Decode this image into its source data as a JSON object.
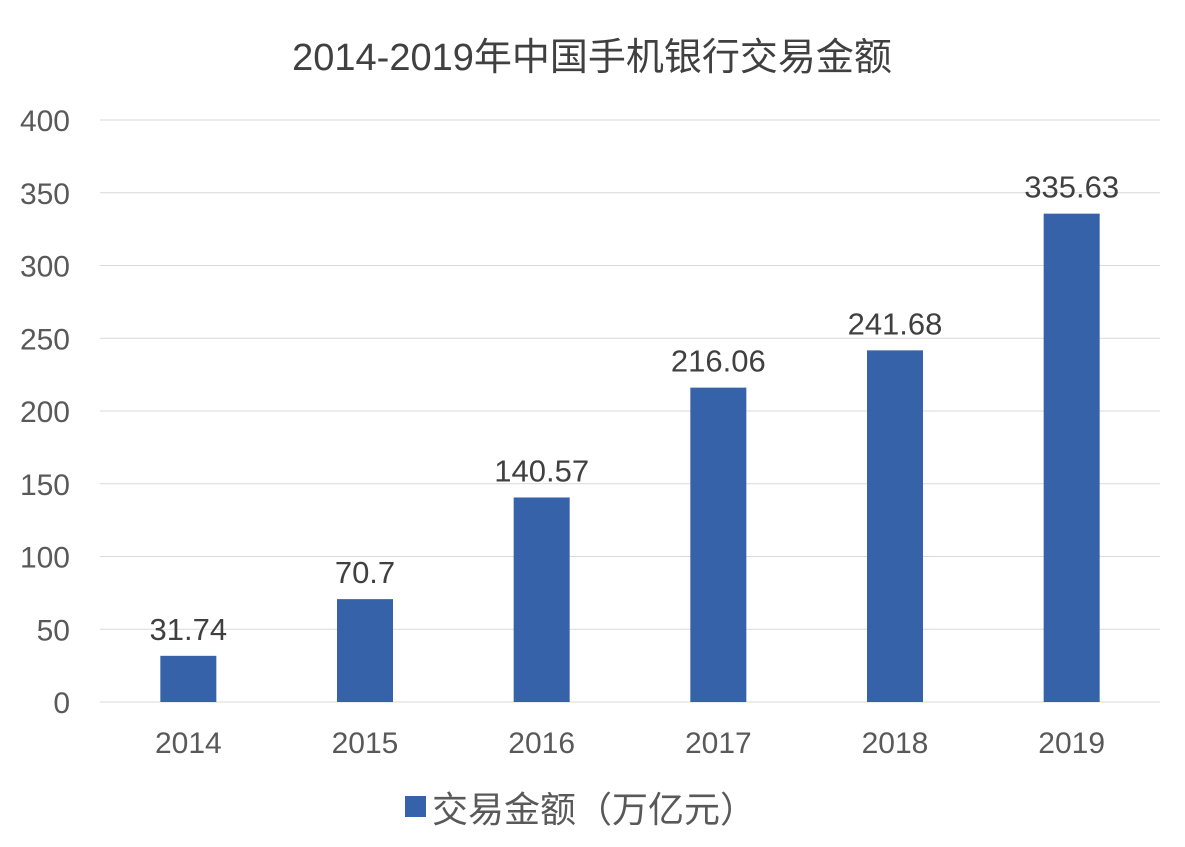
{
  "chart_data": {
    "type": "bar",
    "title": "2014-2019年中国手机银行交易金额",
    "categories": [
      "2014",
      "2015",
      "2016",
      "2017",
      "2018",
      "2019"
    ],
    "series": [
      {
        "name": "交易金额（万亿元）",
        "values": [
          31.74,
          70.7,
          140.57,
          216.06,
          241.68,
          335.63
        ],
        "labels": [
          "31.74",
          "70.7",
          "140.57",
          "216.06",
          "241.68",
          "335.63"
        ],
        "color": "#3562a8"
      }
    ],
    "xlabel": "",
    "ylabel": "",
    "ylim": [
      0,
      400
    ],
    "yticks": [
      "0",
      "50",
      "100",
      "150",
      "200",
      "250",
      "300",
      "350",
      "400"
    ],
    "grid": true,
    "legend_position": "bottom"
  }
}
